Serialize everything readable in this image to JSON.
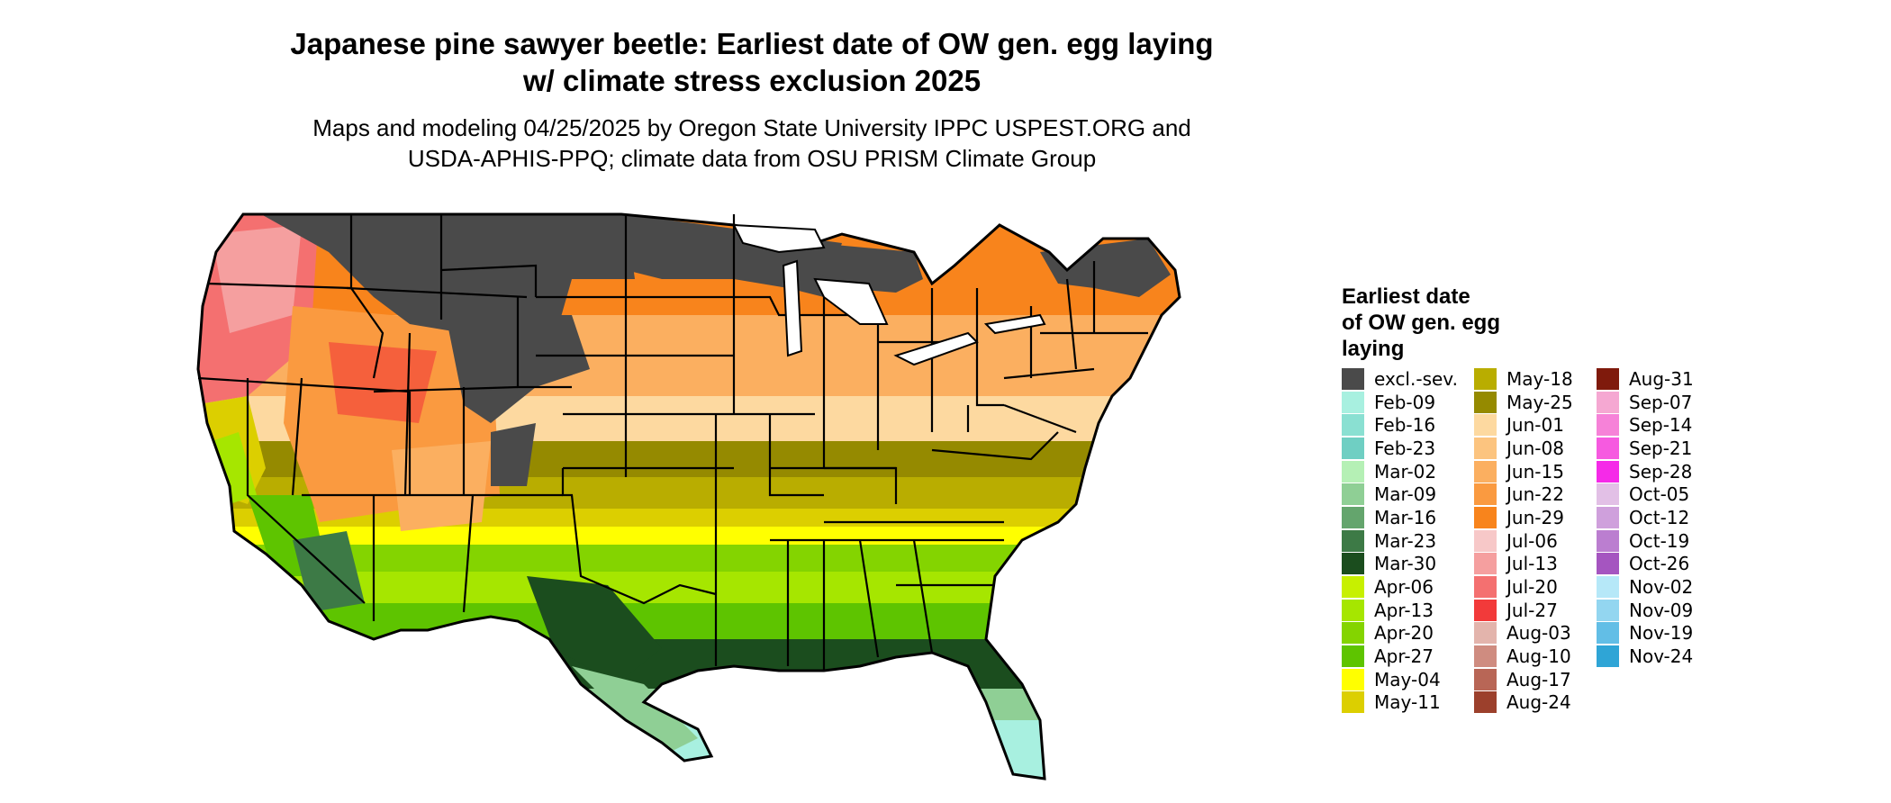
{
  "title_line1": "Japanese pine sawyer beetle: Earliest date of OW gen. egg laying",
  "title_line2": "w/ climate stress exclusion 2025",
  "subtitle_line1": "Maps and modeling 04/25/2025 by Oregon State University IPPC USPEST.ORG and",
  "subtitle_line2": "USDA-APHIS-PPQ; climate data from OSU PRISM Climate Group",
  "legend": {
    "title_lines": [
      "Earliest date",
      "of OW gen. egg",
      "laying"
    ],
    "columns": [
      [
        {
          "label": "excl.-sev.",
          "color": "#4a4a4a"
        },
        {
          "label": "Feb-09",
          "color": "#a8f0e0"
        },
        {
          "label": "Feb-16",
          "color": "#8ae0d2"
        },
        {
          "label": "Feb-23",
          "color": "#6fcfc3"
        },
        {
          "label": "Mar-02",
          "color": "#b5f0b5"
        },
        {
          "label": "Mar-09",
          "color": "#8fcf95"
        },
        {
          "label": "Mar-16",
          "color": "#64a56d"
        },
        {
          "label": "Mar-23",
          "color": "#3d7a46"
        },
        {
          "label": "Mar-30",
          "color": "#1b4d1e"
        },
        {
          "label": "Apr-06",
          "color": "#c7f000"
        },
        {
          "label": "Apr-13",
          "color": "#a6e600"
        },
        {
          "label": "Apr-20",
          "color": "#84d400"
        },
        {
          "label": "Apr-27",
          "color": "#5ec400"
        },
        {
          "label": "May-04",
          "color": "#ffff00"
        },
        {
          "label": "May-11",
          "color": "#dccf00"
        }
      ],
      [
        {
          "label": "May-18",
          "color": "#b9ad00"
        },
        {
          "label": "May-25",
          "color": "#958a00"
        },
        {
          "label": "Jun-01",
          "color": "#fdd9a0"
        },
        {
          "label": "Jun-08",
          "color": "#fcc47f"
        },
        {
          "label": "Jun-15",
          "color": "#fbaf60"
        },
        {
          "label": "Jun-22",
          "color": "#fa9a40"
        },
        {
          "label": "Jun-29",
          "color": "#f8841c"
        },
        {
          "label": "Jul-06",
          "color": "#f7c8c8"
        },
        {
          "label": "Jul-13",
          "color": "#f59f9f"
        },
        {
          "label": "Jul-20",
          "color": "#f47070"
        },
        {
          "label": "Jul-27",
          "color": "#f23a3a"
        },
        {
          "label": "Aug-03",
          "color": "#e3b4ac"
        },
        {
          "label": "Aug-10",
          "color": "#cf8c80"
        },
        {
          "label": "Aug-17",
          "color": "#b86656"
        },
        {
          "label": "Aug-24",
          "color": "#9c402c"
        }
      ],
      [
        {
          "label": "Aug-31",
          "color": "#7f1a0c"
        },
        {
          "label": "Sep-07",
          "color": "#f5a8d2"
        },
        {
          "label": "Sep-14",
          "color": "#f682d8"
        },
        {
          "label": "Sep-21",
          "color": "#f65ae0"
        },
        {
          "label": "Sep-28",
          "color": "#f52ae8"
        },
        {
          "label": "Oct-05",
          "color": "#e2c0e6"
        },
        {
          "label": "Oct-12",
          "color": "#cfa0dc"
        },
        {
          "label": "Oct-19",
          "color": "#bb7ed0"
        },
        {
          "label": "Oct-26",
          "color": "#a555c0"
        },
        {
          "label": "Nov-02",
          "color": "#b6e8f8"
        },
        {
          "label": "Nov-09",
          "color": "#93d6f0"
        },
        {
          "label": "Nov-19",
          "color": "#62bee6"
        },
        {
          "label": "Nov-24",
          "color": "#2fa5d6"
        }
      ]
    ]
  }
}
